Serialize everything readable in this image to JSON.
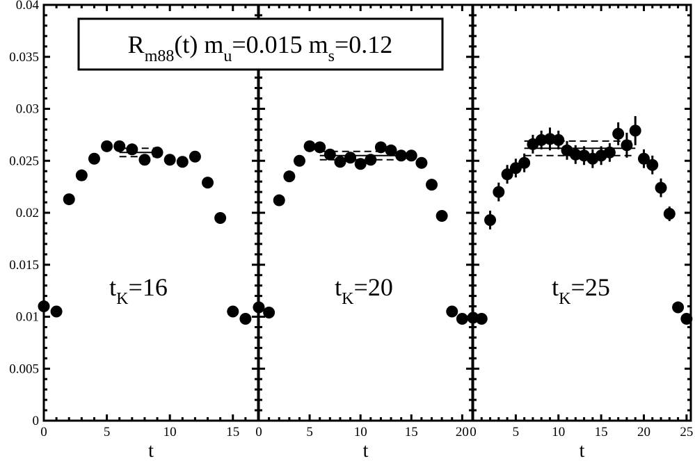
{
  "chart_data": {
    "type": "scatter",
    "title": "R_m88(t) m_u=0.015 m_s=0.12",
    "title_parts": {
      "symbol": "R",
      "symbol_sub": "m88",
      "arg": "(t) m",
      "mu_sub": "u",
      "mu_val": "=0.015 m",
      "ms_sub": "s",
      "ms_val": "=0.12"
    },
    "ylim": [
      0,
      0.04
    ],
    "yticks": [
      0,
      0.005,
      0.01,
      0.015,
      0.02,
      0.025,
      0.03,
      0.035,
      0.04
    ],
    "ytick_labels": [
      "0",
      "0.005",
      "0.01",
      "0.015",
      "0.02",
      "0.025",
      "0.03",
      "0.035",
      "0.04"
    ],
    "marker": "filled-circle",
    "marker_color": "#000000",
    "panels": [
      {
        "label": "t_K=16",
        "label_main": "t",
        "label_sub": "K",
        "label_val": "=16",
        "xlabel": "t",
        "xlim": [
          0,
          17
        ],
        "xticks": [
          0,
          5,
          10,
          15
        ],
        "xtick_labels": [
          "0",
          "5",
          "10",
          "15"
        ],
        "x": [
          0,
          1,
          2,
          3,
          4,
          5,
          6,
          7,
          8,
          9,
          10,
          11,
          12,
          13,
          14,
          15,
          16
        ],
        "y": [
          0.011,
          0.0105,
          0.0213,
          0.0236,
          0.0252,
          0.0264,
          0.0264,
          0.0261,
          0.0251,
          0.0258,
          0.0251,
          0.0249,
          0.0254,
          0.0229,
          0.0195,
          0.0105,
          0.0098
        ],
        "err": [
          0,
          0,
          0,
          0,
          0,
          0,
          0,
          0,
          0,
          0,
          0,
          0,
          0,
          0,
          0,
          0,
          0
        ],
        "fit": {
          "x_range": [
            6,
            9
          ],
          "central": 0.0258,
          "lower": 0.0254,
          "upper": 0.0262
        }
      },
      {
        "label": "t_K=20",
        "label_main": "t",
        "label_sub": "K",
        "label_val": "=20",
        "xlabel": "t",
        "xlim": [
          0,
          21
        ],
        "xticks": [
          0,
          5,
          10,
          15,
          20
        ],
        "xtick_labels": [
          "0",
          "5",
          "10",
          "15",
          "20"
        ],
        "x": [
          0,
          1,
          2,
          3,
          4,
          5,
          6,
          7,
          8,
          9,
          10,
          11,
          12,
          13,
          14,
          15,
          16,
          17,
          18,
          19,
          20
        ],
        "y": [
          0.0109,
          0.0104,
          0.0212,
          0.0235,
          0.025,
          0.0264,
          0.0263,
          0.0256,
          0.0249,
          0.0253,
          0.0247,
          0.0251,
          0.0263,
          0.026,
          0.0255,
          0.0255,
          0.0248,
          0.0227,
          0.0197,
          0.0105,
          0.0098
        ],
        "err": [
          0,
          0,
          0,
          0,
          0,
          0,
          0,
          0,
          0,
          0,
          0,
          0,
          0,
          0,
          0,
          0,
          0,
          0,
          0,
          0,
          0
        ],
        "fit": {
          "x_range": [
            6,
            14
          ],
          "central": 0.0255,
          "lower": 0.0251,
          "upper": 0.0259
        }
      },
      {
        "label": "t_K=25",
        "label_main": "t",
        "label_sub": "K",
        "label_val": "=25",
        "xlabel": "t",
        "xlim": [
          0,
          25.5
        ],
        "xticks": [
          0,
          5,
          10,
          15,
          20,
          25
        ],
        "xtick_labels": [
          "0",
          "5",
          "10",
          "15",
          "20",
          "25"
        ],
        "x": [
          0,
          1,
          2,
          3,
          4,
          5,
          6,
          7,
          8,
          9,
          10,
          11,
          12,
          13,
          14,
          15,
          16,
          17,
          18,
          19,
          20,
          21,
          22,
          23,
          24,
          25
        ],
        "y": [
          0.0099,
          0.0098,
          0.0193,
          0.022,
          0.0237,
          0.0243,
          0.0248,
          0.0266,
          0.027,
          0.0271,
          0.027,
          0.026,
          0.0256,
          0.0255,
          0.0252,
          0.0255,
          0.0258,
          0.0276,
          0.0265,
          0.0279,
          0.0252,
          0.0246,
          0.0224,
          0.0199,
          0.0109,
          0.0098
        ],
        "err": [
          0,
          0,
          0.0009,
          0.0009,
          0.0009,
          0.0009,
          0.0009,
          0.0009,
          0.0009,
          0.0011,
          0.0009,
          0.0009,
          0.0009,
          0.0009,
          0.0009,
          0.0009,
          0.0009,
          0.0011,
          0.0012,
          0.0014,
          0.0009,
          0.0009,
          0.0009,
          0.0007,
          0,
          0
        ],
        "fit": {
          "x_range": [
            6,
            19
          ],
          "central": 0.0262,
          "lower": 0.0255,
          "upper": 0.0269
        }
      }
    ]
  }
}
